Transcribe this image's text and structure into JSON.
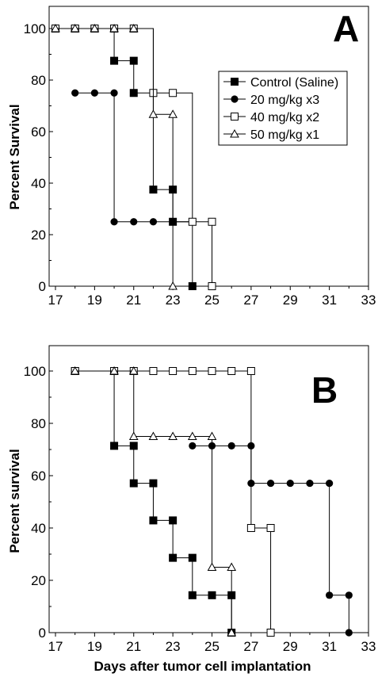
{
  "chart_data": [
    {
      "type": "line",
      "step": true,
      "panel_label": "A",
      "ylabel": "Percent Survival",
      "xlabel": "",
      "xlim": [
        17,
        33
      ],
      "ylim": [
        0,
        100
      ],
      "xticks": [
        17,
        19,
        21,
        23,
        25,
        27,
        29,
        31,
        33
      ],
      "yticks": [
        0,
        20,
        40,
        60,
        80,
        100
      ],
      "grid": false,
      "legend_position": "top-right",
      "series": [
        {
          "name": "Control (Saline)",
          "marker": "square-filled",
          "points": [
            [
              17,
              100
            ],
            [
              18,
              100
            ],
            [
              19,
              100
            ],
            [
              20,
              87.5
            ],
            [
              21,
              87.5
            ],
            [
              21,
              75
            ],
            [
              22,
              37.5
            ],
            [
              23,
              37.5
            ],
            [
              23,
              25
            ],
            [
              24,
              0
            ]
          ]
        },
        {
          "name": "20 mg/kg x3",
          "marker": "circle-filled",
          "points": [
            [
              18,
              75
            ],
            [
              19,
              75
            ],
            [
              20,
              75
            ],
            [
              20,
              25
            ],
            [
              21,
              25
            ],
            [
              22,
              25
            ],
            [
              23,
              25
            ],
            [
              24,
              25
            ]
          ]
        },
        {
          "name": "40 mg/kg x2",
          "marker": "square-open",
          "points": [
            [
              17,
              100
            ],
            [
              18,
              100
            ],
            [
              19,
              100
            ],
            [
              20,
              100
            ],
            [
              21,
              100
            ],
            [
              22,
              75
            ],
            [
              23,
              75
            ],
            [
              24,
              25
            ],
            [
              25,
              25
            ],
            [
              25,
              0
            ]
          ]
        },
        {
          "name": "50 mg/kg x1",
          "marker": "triangle-open",
          "points": [
            [
              17,
              100
            ],
            [
              18,
              100
            ],
            [
              19,
              100
            ],
            [
              20,
              100
            ],
            [
              21,
              100
            ],
            [
              22,
              66.7
            ],
            [
              23,
              66.7
            ],
            [
              23,
              0
            ]
          ]
        }
      ]
    },
    {
      "type": "line",
      "step": true,
      "panel_label": "B",
      "ylabel": "Percent survival",
      "xlabel": "Days after tumor cell implantation",
      "xlim": [
        17,
        33
      ],
      "ylim": [
        0,
        100
      ],
      "xticks": [
        17,
        19,
        21,
        23,
        25,
        27,
        29,
        31,
        33
      ],
      "yticks": [
        0,
        20,
        40,
        60,
        80,
        100
      ],
      "grid": false,
      "series": [
        {
          "name": "Control (Saline)",
          "marker": "square-filled",
          "points": [
            [
              18,
              100
            ],
            [
              20,
              71.4
            ],
            [
              21,
              71.4
            ],
            [
              21,
              57.1
            ],
            [
              22,
              57.1
            ],
            [
              22,
              42.9
            ],
            [
              23,
              42.9
            ],
            [
              23,
              28.6
            ],
            [
              24,
              28.6
            ],
            [
              24,
              14.3
            ],
            [
              25,
              14.3
            ],
            [
              26,
              14.3
            ],
            [
              26,
              0
            ]
          ]
        },
        {
          "name": "20 mg/kg x3",
          "marker": "circle-filled",
          "points": [
            [
              24,
              71.4
            ],
            [
              25,
              71.4
            ],
            [
              26,
              71.4
            ],
            [
              27,
              71.4
            ],
            [
              27,
              57.1
            ],
            [
              28,
              57.1
            ],
            [
              29,
              57.1
            ],
            [
              30,
              57.1
            ],
            [
              31,
              57.1
            ],
            [
              31,
              14.3
            ],
            [
              32,
              14.3
            ],
            [
              32,
              0
            ]
          ]
        },
        {
          "name": "40 mg/kg x2",
          "marker": "square-open",
          "points": [
            [
              18,
              100
            ],
            [
              20,
              100
            ],
            [
              21,
              100
            ],
            [
              22,
              100
            ],
            [
              23,
              100
            ],
            [
              24,
              100
            ],
            [
              25,
              100
            ],
            [
              26,
              100
            ],
            [
              27,
              100
            ],
            [
              27,
              40
            ],
            [
              28,
              40
            ],
            [
              28,
              0
            ]
          ]
        },
        {
          "name": "50 mg/kg x1",
          "marker": "triangle-open",
          "points": [
            [
              18,
              100
            ],
            [
              20,
              100
            ],
            [
              21,
              100
            ],
            [
              21,
              75
            ],
            [
              22,
              75
            ],
            [
              23,
              75
            ],
            [
              24,
              75
            ],
            [
              25,
              75
            ],
            [
              25,
              25
            ],
            [
              26,
              25
            ],
            [
              26,
              0
            ]
          ]
        }
      ]
    }
  ]
}
